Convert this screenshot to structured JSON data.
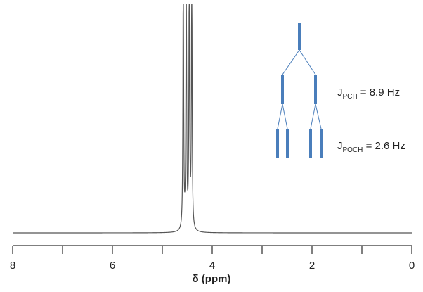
{
  "chart_data": {
    "type": "line",
    "xlabel": "δ  (ppm)",
    "xlim": [
      8,
      0
    ],
    "x_reversed": true,
    "xticks": [
      8,
      6,
      4,
      2,
      0
    ],
    "xticks_minor": [
      7,
      5,
      3,
      1
    ],
    "grid": false,
    "series": [
      {
        "line_color": "#555555",
        "peaks_ppm": [
          4.58,
          4.52,
          4.46,
          4.41
        ]
      }
    ],
    "annotations": [
      {
        "main": "J",
        "sub": "PCH",
        "rest": " = 8.9 Hz"
      },
      {
        "main": "J",
        "sub": "POCH",
        "rest": " = 2.6 Hz"
      }
    ],
    "splitting_tree": {
      "color": "#4a7ebb",
      "levels": [
        "singlet",
        "doublet",
        "doublet of doublets"
      ]
    }
  }
}
